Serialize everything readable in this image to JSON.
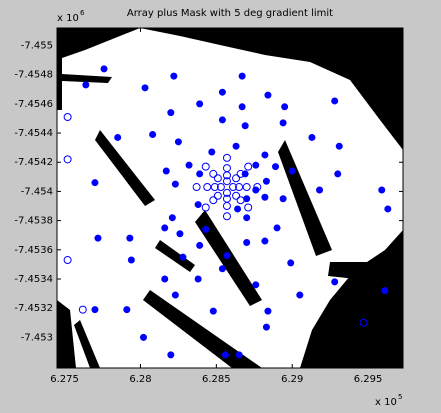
{
  "chart_data": {
    "type": "scatter",
    "title": "Array plus Mask with 5 deg gradient limit",
    "x_exponent": {
      "base": "x 10",
      "power": "5"
    },
    "y_exponent": {
      "base": "x 10",
      "power": "6"
    },
    "xlim": [
      6.2745,
      6.2973
    ],
    "ylim": [
      -7.45512,
      -7.45279
    ],
    "y_reversed": true,
    "xticks": [
      6.275,
      6.28,
      6.285,
      6.29,
      6.295
    ],
    "yticks": [
      -7.455,
      -7.4548,
      -7.4546,
      -7.4544,
      -7.4542,
      -7.454,
      -7.4538,
      -7.4536,
      -7.4534,
      -7.4532,
      -7.453
    ],
    "grid": false,
    "series": [
      {
        "color": "#0000ff",
        "marker": "filled",
        "x": [
          6.2776,
          6.2822,
          6.2867,
          6.2803,
          6.2764,
          6.2854,
          6.2884,
          6.2839,
          6.2928,
          6.2867,
          6.2895,
          6.282,
          6.2854,
          6.2869,
          6.2785,
          6.2808,
          6.2894,
          6.2913,
          6.2931,
          6.2825,
          6.2863,
          6.2882,
          6.2847,
          6.2832,
          6.2876,
          6.2817,
          6.2889,
          6.29,
          6.2839,
          6.2869,
          6.293,
          6.277,
          6.2823,
          6.2883,
          6.2918,
          6.2959,
          6.2876,
          6.2882,
          6.287,
          6.2894,
          6.2838,
          6.2864,
          6.2821,
          6.287,
          6.2816,
          6.289,
          6.2843,
          6.2826,
          6.287,
          6.2772,
          6.2793,
          6.2882,
          6.2839,
          6.2828,
          6.2857,
          6.2899,
          6.2794,
          6.2816,
          6.2838,
          6.2854,
          6.2928,
          6.2876,
          6.2823,
          6.2905,
          6.2961,
          6.2791,
          6.277,
          6.2802,
          6.2884,
          6.2848,
          6.282,
          6.2883,
          6.2856,
          6.2865,
          6.2963
        ],
        "y": [
          -7.45484,
          -7.45479,
          -7.45479,
          -7.45471,
          -7.45473,
          -7.45468,
          -7.45466,
          -7.4546,
          -7.45462,
          -7.45458,
          -7.45458,
          -7.45454,
          -7.45449,
          -7.45445,
          -7.45437,
          -7.45439,
          -7.45447,
          -7.45437,
          -7.45431,
          -7.45434,
          -7.45431,
          -7.45425,
          -7.45427,
          -7.45418,
          -7.45418,
          -7.45414,
          -7.45417,
          -7.45414,
          -7.45412,
          -7.45412,
          -7.45412,
          -7.45406,
          -7.45405,
          -7.45407,
          -7.45401,
          -7.45401,
          -7.45401,
          -7.45396,
          -7.45395,
          -7.45395,
          -7.45391,
          -7.45388,
          -7.45382,
          -7.45382,
          -7.45375,
          -7.45375,
          -7.45374,
          -7.45371,
          -7.45365,
          -7.45368,
          -7.45368,
          -7.45366,
          -7.45363,
          -7.45355,
          -7.45356,
          -7.45351,
          -7.45353,
          -7.4534,
          -7.4534,
          -7.45347,
          -7.45338,
          -7.45336,
          -7.45329,
          -7.45329,
          -7.45332,
          -7.45319,
          -7.45319,
          -7.453,
          -7.45318,
          -7.45318,
          -7.45288,
          -7.45307,
          -7.45288,
          -7.45288,
          -7.45388
        ]
      },
      {
        "color": "#0000ff",
        "marker": "open",
        "x": [
          6.2752,
          6.2752,
          6.2752,
          6.2762,
          6.2947,
          6.2857,
          6.2861,
          6.2857,
          6.2853,
          6.2857,
          6.2863,
          6.2865,
          6.2863,
          6.2857,
          6.2851,
          6.2849,
          6.2851,
          6.2857,
          6.2866,
          6.287,
          6.2866,
          6.2857,
          6.2848,
          6.2844,
          6.2848,
          6.2857,
          6.2871,
          6.2877,
          6.2871,
          6.2857,
          6.2843,
          6.2837,
          6.2843
        ],
        "y": [
          -7.45451,
          -7.45422,
          -7.45353,
          -7.45319,
          -7.4531,
          -7.45407,
          -7.45403,
          -7.45399,
          -7.45403,
          -7.45411,
          -7.45409,
          -7.45403,
          -7.45397,
          -7.45395,
          -7.45397,
          -7.45403,
          -7.45409,
          -7.45416,
          -7.45412,
          -7.45403,
          -7.45394,
          -7.4539,
          -7.45394,
          -7.45403,
          -7.45412,
          -7.45423,
          -7.45417,
          -7.45403,
          -7.45389,
          -7.45383,
          -7.45389,
          -7.45403,
          -7.45417
        ]
      }
    ]
  }
}
